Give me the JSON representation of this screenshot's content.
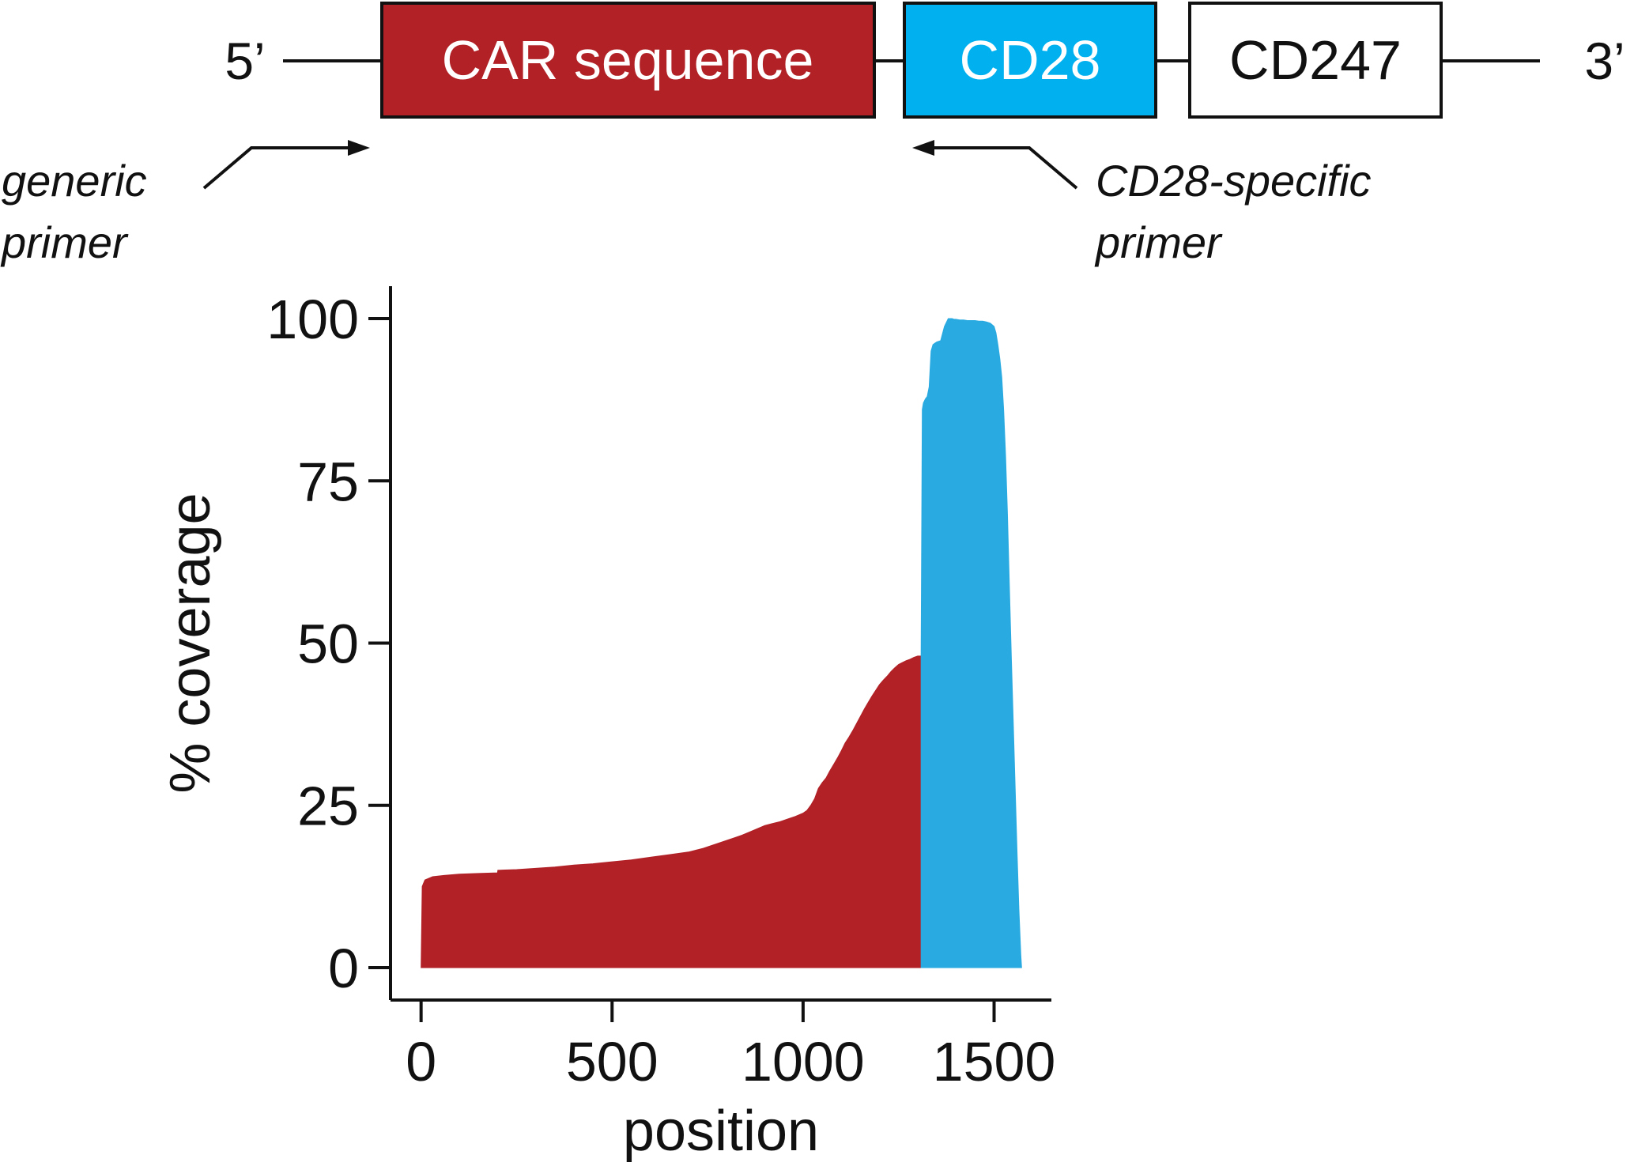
{
  "diagram": {
    "five_prime": "5’",
    "three_prime": "3’",
    "segments": [
      {
        "label": "CAR sequence",
        "fill": "#b12126",
        "text_color": "#ffffff"
      },
      {
        "label": "CD28",
        "fill": "#00b0ef",
        "text_color": "#ffffff"
      },
      {
        "label": "CD247",
        "fill": "#ffffff",
        "text_color": "#111111"
      }
    ],
    "primers": [
      {
        "lines": [
          "generic",
          "primer"
        ],
        "direction": "forward"
      },
      {
        "lines": [
          "CD28-specific",
          "primer"
        ],
        "direction": "reverse"
      }
    ]
  },
  "chart_data": {
    "type": "area",
    "xlabel": "position",
    "ylabel": "% coverage",
    "xlim": [
      -80,
      1650
    ],
    "ylim": [
      -5,
      105
    ],
    "xticks": [
      0,
      500,
      1000,
      1500
    ],
    "yticks": [
      0,
      25,
      50,
      75,
      100
    ],
    "grid": false,
    "colors": {
      "car": "#b12126",
      "cd28": "#29aae1"
    },
    "series": [
      {
        "region": "CAR",
        "color": "#b12126",
        "x": [
          0,
          3,
          10,
          30,
          60,
          100,
          150,
          200,
          201,
          250,
          300,
          350,
          400,
          450,
          500,
          550,
          600,
          650,
          700,
          720,
          740,
          760,
          780,
          800,
          820,
          840,
          860,
          880,
          900,
          920,
          940,
          960,
          980,
          1000,
          1010,
          1020,
          1030,
          1040,
          1050,
          1060,
          1070,
          1080,
          1090,
          1100,
          1110,
          1120,
          1130,
          1140,
          1150,
          1160,
          1170,
          1180,
          1190,
          1200,
          1210,
          1220,
          1230,
          1240,
          1250,
          1260,
          1270,
          1280,
          1290,
          1300,
          1309
        ],
        "y": [
          0,
          12.5,
          13.5,
          14.0,
          14.2,
          14.4,
          14.5,
          14.6,
          15.0,
          15.1,
          15.3,
          15.5,
          15.8,
          16.0,
          16.3,
          16.6,
          17.0,
          17.4,
          17.8,
          18.1,
          18.4,
          18.8,
          19.2,
          19.6,
          20.0,
          20.4,
          20.9,
          21.4,
          21.9,
          22.2,
          22.5,
          22.9,
          23.3,
          23.8,
          24.2,
          25.0,
          26.0,
          27.6,
          28.5,
          29.2,
          30.3,
          31.3,
          32.3,
          33.4,
          34.6,
          35.5,
          36.5,
          37.6,
          38.7,
          39.8,
          40.8,
          41.8,
          42.7,
          43.6,
          44.3,
          44.9,
          45.6,
          46.2,
          46.7,
          47.0,
          47.3,
          47.5,
          47.8,
          48.0,
          48.0
        ]
      },
      {
        "region": "CD28",
        "color": "#29aae1",
        "x": [
          1309,
          1312,
          1315,
          1320,
          1325,
          1330,
          1335,
          1340,
          1345,
          1350,
          1360,
          1370,
          1380,
          1390,
          1395,
          1400,
          1410,
          1420,
          1430,
          1440,
          1450,
          1460,
          1470,
          1480,
          1490,
          1500,
          1505,
          1510,
          1515,
          1520,
          1525,
          1530,
          1535,
          1540,
          1545,
          1550,
          1555,
          1560,
          1565,
          1570,
          1572
        ],
        "y": [
          48.0,
          86.0,
          87.0,
          87.6,
          88.0,
          89.5,
          95.0,
          96.0,
          96.2,
          96.4,
          96.6,
          98.8,
          100.0,
          100.0,
          99.9,
          99.9,
          99.8,
          99.8,
          99.7,
          99.7,
          99.7,
          99.6,
          99.6,
          99.5,
          99.3,
          98.8,
          97.8,
          96.0,
          93.8,
          91.0,
          86.0,
          79.0,
          70.0,
          59.0,
          48.0,
          38.0,
          28.0,
          18.0,
          9.0,
          2.0,
          0
        ]
      }
    ]
  }
}
